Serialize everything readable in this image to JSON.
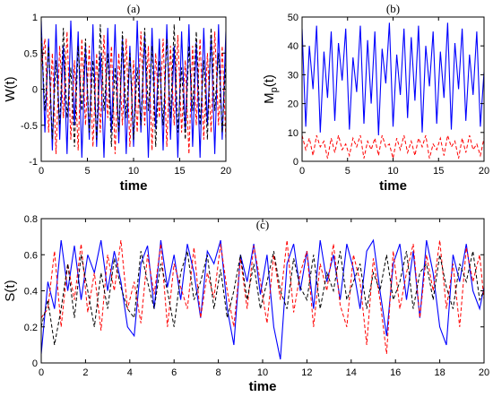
{
  "colors": {
    "solid": "#0000ff",
    "dashed_red": "#ff0000",
    "dashed_black": "#000000"
  },
  "chart_data": [
    {
      "type": "line",
      "title": "(a)",
      "xlabel": "time",
      "ylabel": "W(t)",
      "xlim": [
        0,
        20
      ],
      "ylim": [
        -1,
        1
      ],
      "xticks": [
        "0",
        "5",
        "10",
        "15",
        "20"
      ],
      "yticks": [
        "-1",
        "-0.5",
        "0",
        "0.5",
        "1"
      ],
      "grid": false,
      "series": [
        {
          "style": "solid",
          "color": "#0000ff",
          "x": [
            0,
            0.4,
            0.8,
            1.2,
            1.6,
            2,
            2.4,
            2.8,
            3.2,
            3.6,
            4,
            4.4,
            4.8,
            5.2,
            5.6,
            6,
            6.4,
            6.8,
            7.2,
            7.6,
            8,
            8.4,
            8.8,
            9.2,
            9.6,
            10,
            10.4,
            10.8,
            11.2,
            11.6,
            12,
            12.4,
            12.8,
            13.2,
            13.6,
            14,
            14.4,
            14.8,
            15.2,
            15.6,
            16,
            16.4,
            16.8,
            17.2,
            17.6,
            18,
            18.4,
            18.8,
            19.2,
            19.6,
            20
          ],
          "y": [
            0.95,
            -0.6,
            0.7,
            -0.85,
            0.9,
            -0.7,
            0.6,
            -0.9,
            0.95,
            -0.5,
            0.8,
            -0.95,
            0.6,
            -0.7,
            0.9,
            -0.8,
            0.5,
            -0.95,
            0.85,
            -0.6,
            0.9,
            -0.75,
            0.7,
            -0.9,
            0.6,
            -0.8,
            0.95,
            -0.6,
            0.75,
            -0.95,
            0.85,
            -0.55,
            0.7,
            -0.85,
            0.9,
            -0.7,
            0.6,
            -0.95,
            0.8,
            -0.6,
            0.9,
            -0.8,
            0.65,
            -0.95,
            0.85,
            -0.5,
            0.75,
            -0.9,
            0.9,
            -0.7,
            0.8
          ]
        },
        {
          "style": "dashed",
          "color": "#ff0000",
          "x": [
            0,
            0.4,
            0.8,
            1.2,
            1.6,
            2,
            2.4,
            2.8,
            3.2,
            3.6,
            4,
            4.4,
            4.8,
            5.2,
            5.6,
            6,
            6.4,
            6.8,
            7.2,
            7.6,
            8,
            8.4,
            8.8,
            9.2,
            9.6,
            10,
            10.4,
            10.8,
            11.2,
            11.6,
            12,
            12.4,
            12.8,
            13.2,
            13.6,
            14,
            14.4,
            14.8,
            15.2,
            15.6,
            16,
            16.4,
            16.8,
            17.2,
            17.6,
            18,
            18.4,
            18.8,
            19.2,
            19.6,
            20
          ],
          "y": [
            0.3,
            0.7,
            -0.6,
            0.5,
            -0.9,
            0.6,
            -0.4,
            0.8,
            -0.7,
            0.4,
            -0.85,
            0.7,
            -0.5,
            0.6,
            -0.8,
            0.5,
            -0.6,
            0.75,
            -0.4,
            0.6,
            -0.9,
            0.5,
            -0.5,
            0.7,
            -0.8,
            0.4,
            -0.6,
            0.8,
            -0.5,
            0.6,
            -0.85,
            0.5,
            -0.4,
            0.7,
            -0.8,
            0.6,
            -0.5,
            0.75,
            -0.6,
            0.4,
            -0.9,
            0.6,
            -0.5,
            0.7,
            -0.7,
            0.5,
            -0.6,
            0.8,
            -0.5,
            0.6,
            -0.7
          ]
        },
        {
          "style": "dashed",
          "color": "#000000",
          "x": [
            0,
            0.4,
            0.8,
            1.2,
            1.6,
            2,
            2.4,
            2.8,
            3.2,
            3.6,
            4,
            4.4,
            4.8,
            5.2,
            5.6,
            6,
            6.4,
            6.8,
            7.2,
            7.6,
            8,
            8.4,
            8.8,
            9.2,
            9.6,
            10,
            10.4,
            10.8,
            11.2,
            11.6,
            12,
            12.4,
            12.8,
            13.2,
            13.6,
            14,
            14.4,
            14.8,
            15.2,
            15.6,
            16,
            16.4,
            16.8,
            17.2,
            17.6,
            18,
            18.4,
            18.8,
            19.2,
            19.6,
            20
          ],
          "y": [
            0.8,
            -0.3,
            0.6,
            -0.7,
            0.4,
            -0.5,
            0.85,
            -0.4,
            0.3,
            -0.8,
            0.6,
            -0.3,
            0.7,
            -0.6,
            0.4,
            -0.7,
            0.9,
            -0.3,
            0.5,
            -0.8,
            0.3,
            -0.6,
            0.8,
            -0.4,
            0.5,
            -0.7,
            0.3,
            -0.5,
            0.85,
            -0.3,
            0.6,
            -0.8,
            0.4,
            -0.5,
            0.7,
            -0.4,
            0.9,
            -0.6,
            0.3,
            -0.7,
            0.6,
            -0.3,
            0.8,
            -0.5,
            0.4,
            -0.7,
            0.85,
            -0.3,
            0.5,
            -0.6,
            0.4
          ]
        }
      ]
    },
    {
      "type": "line",
      "title": "(b)",
      "xlabel": "time",
      "ylabel": "M",
      "ylabel_subscript": "p",
      "ylabel_suffix": "(t)",
      "xlim": [
        0,
        20
      ],
      "ylim": [
        0,
        50
      ],
      "xticks": [
        "0",
        "5",
        "10",
        "15",
        "20"
      ],
      "yticks": [
        "0",
        "10",
        "20",
        "30",
        "40",
        "50"
      ],
      "grid": false,
      "series": [
        {
          "style": "solid",
          "color": "#0000ff",
          "x": [
            0,
            0.4,
            0.8,
            1.2,
            1.6,
            2,
            2.4,
            2.8,
            3.2,
            3.6,
            4,
            4.4,
            4.8,
            5.2,
            5.6,
            6,
            6.4,
            6.8,
            7.2,
            7.6,
            8,
            8.4,
            8.8,
            9.2,
            9.6,
            10,
            10.4,
            10.8,
            11.2,
            11.6,
            12,
            12.4,
            12.8,
            13.2,
            13.6,
            14,
            14.4,
            14.8,
            15.2,
            15.6,
            16,
            16.4,
            16.8,
            17.2,
            17.6,
            18,
            18.4,
            18.8,
            19.2,
            19.6,
            20
          ],
          "y": [
            46,
            12,
            40,
            25,
            47,
            10,
            38,
            22,
            45,
            14,
            41,
            28,
            46,
            11,
            36,
            24,
            47,
            13,
            42,
            20,
            45,
            9,
            39,
            27,
            48,
            12,
            37,
            23,
            46,
            15,
            43,
            21,
            47,
            10,
            40,
            26,
            45,
            13,
            38,
            22,
            48,
            11,
            41,
            25,
            46,
            14,
            37,
            23,
            45,
            12,
            31
          ]
        },
        {
          "style": "dashed",
          "color": "#ff0000",
          "x": [
            0,
            0.4,
            0.8,
            1.2,
            1.6,
            2,
            2.4,
            2.8,
            3.2,
            3.6,
            4,
            4.4,
            4.8,
            5.2,
            5.6,
            6,
            6.4,
            6.8,
            7.2,
            7.6,
            8,
            8.4,
            8.8,
            9.2,
            9.6,
            10,
            10.4,
            10.8,
            11.2,
            11.6,
            12,
            12.4,
            12.8,
            13.2,
            13.6,
            14,
            14.4,
            14.8,
            15.2,
            15.6,
            16,
            16.4,
            16.8,
            17.2,
            17.6,
            18,
            18.4,
            18.8,
            19.2,
            19.6,
            20
          ],
          "y": [
            9,
            4,
            8,
            2,
            9,
            5,
            7,
            1,
            8,
            3,
            9,
            4,
            6,
            2,
            8,
            5,
            9,
            1,
            7,
            4,
            8,
            2,
            9,
            5,
            6,
            1,
            8,
            4,
            9,
            3,
            7,
            2,
            8,
            5,
            9,
            1,
            6,
            4,
            8,
            2,
            9,
            5,
            7,
            1,
            8,
            3,
            9,
            4,
            6,
            2,
            8
          ]
        }
      ]
    },
    {
      "type": "line",
      "title": "(c)",
      "xlabel": "time",
      "ylabel": "S(t)",
      "xlim": [
        0,
        20
      ],
      "ylim": [
        0,
        0.8
      ],
      "xticks": [
        "0",
        "2",
        "4",
        "6",
        "8",
        "10",
        "12",
        "14",
        "16",
        "18",
        "20"
      ],
      "yticks": [
        "0",
        "0.2",
        "0.4",
        "0.6",
        "0.8"
      ],
      "grid": false,
      "series": [
        {
          "style": "solid",
          "color": "#0000ff",
          "x": [
            0,
            0.3,
            0.6,
            0.9,
            1.2,
            1.5,
            1.8,
            2.1,
            2.4,
            2.7,
            3,
            3.3,
            3.6,
            3.9,
            4.2,
            4.5,
            4.8,
            5.1,
            5.4,
            5.7,
            6,
            6.3,
            6.6,
            6.9,
            7.2,
            7.5,
            7.8,
            8.1,
            8.4,
            8.7,
            9,
            9.3,
            9.6,
            9.9,
            10.2,
            10.5,
            10.8,
            11.1,
            11.4,
            11.7,
            12,
            12.3,
            12.6,
            12.9,
            13.2,
            13.5,
            13.8,
            14.1,
            14.4,
            14.7,
            15,
            15.3,
            15.6,
            15.9,
            16.2,
            16.5,
            16.8,
            17.1,
            17.4,
            17.7,
            18,
            18.3,
            18.6,
            18.9,
            19.2,
            19.5,
            19.8,
            20
          ],
          "y": [
            0.05,
            0.45,
            0.3,
            0.68,
            0.4,
            0.65,
            0.35,
            0.6,
            0.5,
            0.68,
            0.4,
            0.62,
            0.45,
            0.2,
            0.15,
            0.55,
            0.65,
            0.3,
            0.68,
            0.42,
            0.6,
            0.35,
            0.66,
            0.5,
            0.25,
            0.62,
            0.55,
            0.68,
            0.3,
            0.1,
            0.6,
            0.45,
            0.66,
            0.38,
            0.6,
            0.2,
            0.02,
            0.55,
            0.66,
            0.4,
            0.62,
            0.3,
            0.68,
            0.45,
            0.6,
            0.35,
            0.66,
            0.52,
            0.3,
            0.62,
            0.68,
            0.4,
            0.15,
            0.55,
            0.66,
            0.35,
            0.62,
            0.25,
            0.68,
            0.5,
            0.2,
            0.1,
            0.6,
            0.45,
            0.66,
            0.4,
            0.3,
            0.42
          ]
        },
        {
          "style": "dashed",
          "color": "#ff0000",
          "x": [
            0,
            0.3,
            0.6,
            0.9,
            1.2,
            1.5,
            1.8,
            2.1,
            2.4,
            2.7,
            3,
            3.3,
            3.6,
            3.9,
            4.2,
            4.5,
            4.8,
            5.1,
            5.4,
            5.7,
            6,
            6.3,
            6.6,
            6.9,
            7.2,
            7.5,
            7.8,
            8.1,
            8.4,
            8.7,
            9,
            9.3,
            9.6,
            9.9,
            10.2,
            10.5,
            10.8,
            11.1,
            11.4,
            11.7,
            12,
            12.3,
            12.6,
            12.9,
            13.2,
            13.5,
            13.8,
            14.1,
            14.4,
            14.7,
            15,
            15.3,
            15.6,
            15.9,
            16.2,
            16.5,
            16.8,
            17.1,
            17.4,
            17.7,
            18,
            18.3,
            18.6,
            18.9,
            19.2,
            19.5,
            19.8,
            20
          ],
          "y": [
            0.25,
            0.3,
            0.62,
            0.2,
            0.55,
            0.35,
            0.66,
            0.28,
            0.5,
            0.18,
            0.6,
            0.4,
            0.68,
            0.3,
            0.45,
            0.22,
            0.6,
            0.38,
            0.66,
            0.2,
            0.55,
            0.42,
            0.3,
            0.64,
            0.25,
            0.5,
            0.36,
            0.66,
            0.4,
            0.2,
            0.58,
            0.3,
            0.65,
            0.45,
            0.22,
            0.6,
            0.35,
            0.68,
            0.28,
            0.5,
            0.62,
            0.2,
            0.55,
            0.4,
            0.66,
            0.32,
            0.2,
            0.6,
            0.45,
            0.1,
            0.58,
            0.35,
            0.05,
            0.62,
            0.3,
            0.5,
            0.66,
            0.25,
            0.6,
            0.4,
            0.68,
            0.3,
            0.55,
            0.2,
            0.64,
            0.45,
            0.6,
            0.35
          ]
        },
        {
          "style": "dashed",
          "color": "#000000",
          "x": [
            0,
            0.3,
            0.6,
            0.9,
            1.2,
            1.5,
            1.8,
            2.1,
            2.4,
            2.7,
            3,
            3.3,
            3.6,
            3.9,
            4.2,
            4.5,
            4.8,
            5.1,
            5.4,
            5.7,
            6,
            6.3,
            6.6,
            6.9,
            7.2,
            7.5,
            7.8,
            8.1,
            8.4,
            8.7,
            9,
            9.3,
            9.6,
            9.9,
            10.2,
            10.5,
            10.8,
            11.1,
            11.4,
            11.7,
            12,
            12.3,
            12.6,
            12.9,
            13.2,
            13.5,
            13.8,
            14.1,
            14.4,
            14.7,
            15,
            15.3,
            15.6,
            15.9,
            16.2,
            16.5,
            16.8,
            17.1,
            17.4,
            17.7,
            18,
            18.3,
            18.6,
            18.9,
            19.2,
            19.5,
            19.8,
            20
          ],
          "y": [
            0.2,
            0.35,
            0.1,
            0.3,
            0.55,
            0.25,
            0.6,
            0.4,
            0.2,
            0.5,
            0.3,
            0.58,
            0.42,
            0.3,
            0.25,
            0.62,
            0.45,
            0.3,
            0.55,
            0.4,
            0.2,
            0.5,
            0.62,
            0.35,
            0.45,
            0.6,
            0.3,
            0.52,
            0.25,
            0.4,
            0.6,
            0.35,
            0.55,
            0.3,
            0.45,
            0.62,
            0.4,
            0.3,
            0.58,
            0.42,
            0.35,
            0.6,
            0.3,
            0.5,
            0.4,
            0.62,
            0.35,
            0.45,
            0.55,
            0.3,
            0.5,
            0.4,
            0.6,
            0.35,
            0.45,
            0.62,
            0.3,
            0.5,
            0.55,
            0.35,
            0.6,
            0.42,
            0.3,
            0.55,
            0.45,
            0.62,
            0.35,
            0.4
          ]
        }
      ]
    }
  ]
}
